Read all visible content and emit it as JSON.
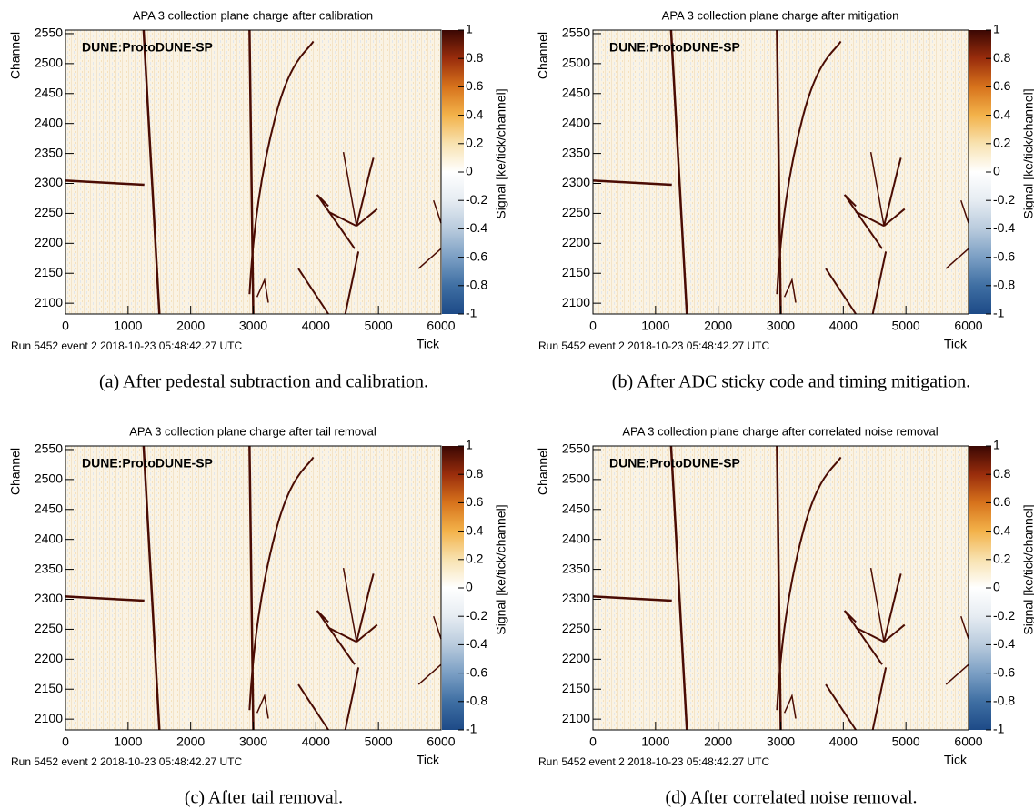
{
  "chart_data": [
    {
      "type": "heatmap",
      "title": "APA 3 collection plane charge after calibration",
      "xlabel": "Tick",
      "ylabel": "Channel",
      "colorbar_label": "Signal [ke/tick/channel]",
      "watermark": "DUNE:ProtoDUNE-SP",
      "run_info": "Run 5452 event 2 2018-10-23 05:48:42.27 UTC",
      "caption": "(a) After pedestal subtraction and calibration.",
      "xlim": [
        0,
        6000
      ],
      "xticks": [
        0,
        1000,
        2000,
        3000,
        4000,
        5000,
        6000
      ],
      "ylim": [
        2082,
        2556
      ],
      "yticks": [
        2100,
        2150,
        2200,
        2250,
        2300,
        2350,
        2400,
        2450,
        2500,
        2550
      ],
      "zlim": [
        -1,
        1
      ],
      "zticks": [
        -1,
        -0.8,
        -0.6,
        -0.4,
        -0.2,
        0,
        0.2,
        0.4,
        0.6,
        0.8,
        1
      ],
      "colorscale": [
        "#1d4a87",
        "#3f6fa3",
        "#7b9fc4",
        "#b9cbdd",
        "#e6ecf2",
        "#ffffff",
        "#f8e2b0",
        "#f3b24a",
        "#d7731c",
        "#9a2d0c",
        "#3a0703"
      ]
    },
    {
      "type": "heatmap",
      "title": "APA 3 collection plane charge after mitigation",
      "xlabel": "Tick",
      "ylabel": "Channel",
      "colorbar_label": "Signal [ke/tick/channel]",
      "watermark": "DUNE:ProtoDUNE-SP",
      "run_info": "Run 5452 event 2 2018-10-23 05:48:42.27 UTC",
      "caption": "(b) After ADC sticky code and timing mitigation.",
      "xlim": [
        0,
        6000
      ],
      "xticks": [
        0,
        1000,
        2000,
        3000,
        4000,
        5000,
        6000
      ],
      "ylim": [
        2082,
        2556
      ],
      "yticks": [
        2100,
        2150,
        2200,
        2250,
        2300,
        2350,
        2400,
        2450,
        2500,
        2550
      ],
      "zlim": [
        -1,
        1
      ],
      "zticks": [
        -1,
        -0.8,
        -0.6,
        -0.4,
        -0.2,
        0,
        0.2,
        0.4,
        0.6,
        0.8,
        1
      ],
      "colorscale": [
        "#1d4a87",
        "#3f6fa3",
        "#7b9fc4",
        "#b9cbdd",
        "#e6ecf2",
        "#ffffff",
        "#f8e2b0",
        "#f3b24a",
        "#d7731c",
        "#9a2d0c",
        "#3a0703"
      ]
    },
    {
      "type": "heatmap",
      "title": "APA 3 collection plane charge after tail removal",
      "xlabel": "Tick",
      "ylabel": "Channel",
      "colorbar_label": "Signal [ke/tick/channel]",
      "watermark": "DUNE:ProtoDUNE-SP",
      "run_info": "Run 5452 event 2 2018-10-23 05:48:42.27 UTC",
      "caption": "(c) After tail removal.",
      "xlim": [
        0,
        6000
      ],
      "xticks": [
        0,
        1000,
        2000,
        3000,
        4000,
        5000,
        6000
      ],
      "ylim": [
        2082,
        2556
      ],
      "yticks": [
        2100,
        2150,
        2200,
        2250,
        2300,
        2350,
        2400,
        2450,
        2500,
        2550
      ],
      "zlim": [
        -1,
        1
      ],
      "zticks": [
        -1,
        -0.8,
        -0.6,
        -0.4,
        -0.2,
        0,
        0.2,
        0.4,
        0.6,
        0.8,
        1
      ],
      "colorscale": [
        "#1d4a87",
        "#3f6fa3",
        "#7b9fc4",
        "#b9cbdd",
        "#e6ecf2",
        "#ffffff",
        "#f8e2b0",
        "#f3b24a",
        "#d7731c",
        "#9a2d0c",
        "#3a0703"
      ]
    },
    {
      "type": "heatmap",
      "title": "APA 3 collection plane charge after correlated noise removal",
      "xlabel": "Tick",
      "ylabel": "Channel",
      "colorbar_label": "Signal [ke/tick/channel]",
      "watermark": "DUNE:ProtoDUNE-SP",
      "run_info": "Run 5452 event 2 2018-10-23 05:48:42.27 UTC",
      "caption": "(d) After correlated noise removal.",
      "xlim": [
        0,
        6000
      ],
      "xticks": [
        0,
        1000,
        2000,
        3000,
        4000,
        5000,
        6000
      ],
      "ylim": [
        2082,
        2556
      ],
      "yticks": [
        2100,
        2150,
        2200,
        2250,
        2300,
        2350,
        2400,
        2450,
        2500,
        2550
      ],
      "zlim": [
        -1,
        1
      ],
      "zticks": [
        -1,
        -0.8,
        -0.6,
        -0.4,
        -0.2,
        0,
        0.2,
        0.4,
        0.6,
        0.8,
        1
      ],
      "colorscale": [
        "#1d4a87",
        "#3f6fa3",
        "#7b9fc4",
        "#b9cbdd",
        "#e6ecf2",
        "#ffffff",
        "#f8e2b0",
        "#f3b24a",
        "#d7731c",
        "#9a2d0c",
        "#3a0703"
      ]
    }
  ]
}
